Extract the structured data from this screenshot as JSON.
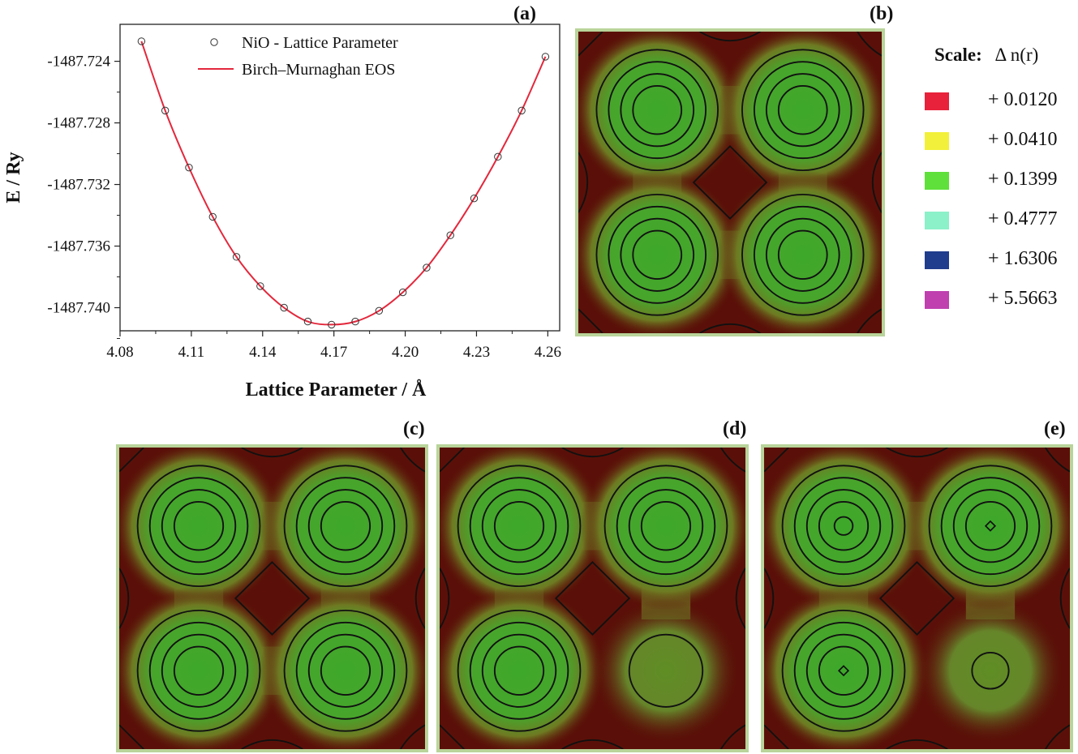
{
  "chart_data": [
    {
      "type": "scatter",
      "panel": "(a)",
      "xlabel": "Lattice Parameter / Å",
      "ylabel": "E / Ry",
      "xlim": [
        4.08,
        4.265
      ],
      "ylim": [
        -1487.7415,
        -1487.7216
      ],
      "xticks": [
        "4.08",
        "4.11",
        "4.14",
        "4.17",
        "4.20",
        "4.23",
        "4.26"
      ],
      "yticks": [
        "-1487.724",
        "-1487.728",
        "-1487.732",
        "-1487.736",
        "-1487.740"
      ],
      "legend": "top-left",
      "series": [
        {
          "name": "NiO - Lattice Parameter",
          "marker": "open-circle",
          "color": "#333333",
          "x": [
            4.089,
            4.099,
            4.109,
            4.119,
            4.129,
            4.139,
            4.149,
            4.159,
            4.169,
            4.179,
            4.189,
            4.199,
            4.209,
            4.219,
            4.229,
            4.239,
            4.249,
            4.259
          ],
          "y": [
            -1487.7227,
            -1487.7272,
            -1487.7309,
            -1487.7341,
            -1487.7367,
            -1487.7386,
            -1487.74,
            -1487.7409,
            -1487.7411,
            -1487.7409,
            -1487.7402,
            -1487.739,
            -1487.7374,
            -1487.7353,
            -1487.7329,
            -1487.7302,
            -1487.7272,
            -1487.7237
          ]
        },
        {
          "name": "Birch–Murnaghan EOS",
          "marker": "line",
          "color": "#e3283c",
          "x": [
            4.089,
            4.099,
            4.109,
            4.119,
            4.129,
            4.139,
            4.149,
            4.159,
            4.169,
            4.179,
            4.189,
            4.199,
            4.209,
            4.219,
            4.229,
            4.239,
            4.249,
            4.259
          ],
          "y": [
            -1487.7227,
            -1487.7272,
            -1487.7309,
            -1487.7341,
            -1487.7367,
            -1487.7386,
            -1487.74,
            -1487.7409,
            -1487.7411,
            -1487.7409,
            -1487.7402,
            -1487.739,
            -1487.7374,
            -1487.7353,
            -1487.7329,
            -1487.7302,
            -1487.7272,
            -1487.7237
          ]
        }
      ]
    },
    {
      "type": "heatmap",
      "panel": "(b)",
      "legend_title": "Scale:",
      "legend_symbol": "Δ n(r)",
      "scale": [
        {
          "label": "+ 0.0120",
          "color": "#e8223a"
        },
        {
          "label": "+ 0.0410",
          "color": "#f2f03a"
        },
        {
          "label": "+ 0.1399",
          "color": "#5fe03a"
        },
        {
          "label": "+ 0.4777",
          "color": "#8cf0c8"
        },
        {
          "label": "+ 1.6306",
          "color": "#203c8c"
        },
        {
          "label": "+ 5.5663",
          "color": "#c040b0"
        }
      ]
    },
    {
      "type": "heatmap",
      "panel": "(c)"
    },
    {
      "type": "heatmap",
      "panel": "(d)"
    },
    {
      "type": "heatmap",
      "panel": "(e)"
    }
  ]
}
